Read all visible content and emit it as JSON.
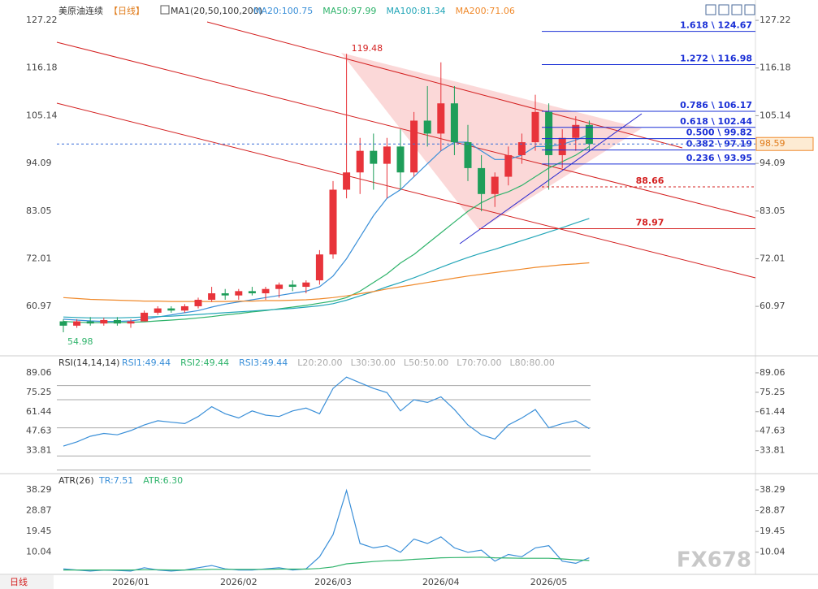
{
  "bottom_tab": "日线",
  "watermark": "FX678",
  "chart_data": [
    {
      "type": "candlestick",
      "title": "美原油连续",
      "subtitle": "【日线】",
      "indicator": "MA1(20,50,100,200)",
      "categories": [
        null,
        null,
        null,
        null,
        null,
        "2026/01",
        null,
        null,
        null,
        null,
        null,
        null,
        null,
        "2026/02",
        null,
        null,
        null,
        null,
        null,
        null,
        "2026/03",
        null,
        null,
        null,
        null,
        null,
        null,
        null,
        "2026/04",
        null,
        null,
        null,
        null,
        null,
        null,
        null,
        "2026/05",
        null,
        null,
        null
      ],
      "open": [
        57.5,
        56.5,
        57.5,
        57,
        57.8,
        57,
        57.5,
        59.5,
        60.5,
        60,
        61,
        62.5,
        64,
        63.5,
        64.5,
        64,
        65,
        66,
        65.5,
        67,
        73,
        88,
        92,
        97,
        94,
        98,
        92,
        104,
        101,
        108,
        99,
        93,
        87,
        91,
        96,
        99,
        106,
        96,
        100,
        103
      ],
      "high": [
        58,
        58,
        58.5,
        58.3,
        58.5,
        58,
        60,
        61,
        61,
        61.5,
        63,
        65.5,
        65,
        65,
        65.5,
        65.5,
        66.5,
        67,
        67,
        74,
        90,
        119.48,
        100,
        101,
        100,
        102,
        106,
        112,
        117.5,
        112,
        103,
        96,
        92,
        98,
        101,
        110,
        108,
        102,
        105,
        104
      ],
      "low": [
        54.98,
        56,
        56.5,
        56.5,
        56.5,
        56,
        57.5,
        59,
        59.5,
        59.5,
        60.5,
        62,
        62.5,
        62.5,
        63.5,
        62.5,
        63,
        64.5,
        64,
        66,
        72,
        86,
        87,
        88,
        86,
        88,
        91,
        98,
        97,
        96,
        90,
        83,
        84,
        89,
        94,
        97,
        88,
        93,
        97,
        97
      ],
      "close": [
        56.5,
        57.5,
        57,
        57.8,
        57,
        57.5,
        59.5,
        60.5,
        60,
        61,
        62.5,
        64,
        63.5,
        64.5,
        64,
        65,
        66,
        65.5,
        66.5,
        73,
        88,
        92,
        97,
        94,
        98,
        92,
        104,
        101,
        108,
        99,
        93,
        87,
        91,
        96,
        99,
        106,
        96,
        100,
        103,
        98.59
      ],
      "up_color": "#e8343b",
      "down_color": "#1f9e5a",
      "series": [
        {
          "name": "MA20:100.75",
          "color": "#3a8fd8",
          "values": [
            58,
            57.8,
            57.6,
            57.5,
            57.5,
            57.6,
            58,
            58.5,
            59,
            59.5,
            60,
            60.8,
            61.5,
            62,
            62.5,
            63,
            63.5,
            64,
            64.5,
            65.5,
            68,
            72,
            77,
            82,
            86,
            88,
            91,
            94,
            97,
            99,
            99,
            97,
            95,
            95,
            96,
            98,
            98,
            98.5,
            99.5,
            100.75
          ]
        },
        {
          "name": "MA50:97.99",
          "color": "#2fb36b",
          "values": [
            57.5,
            57.3,
            57.2,
            57.2,
            57.2,
            57.3,
            57.4,
            57.6,
            57.8,
            58,
            58.3,
            58.6,
            59,
            59.3,
            59.7,
            60,
            60.4,
            60.8,
            61.2,
            61.7,
            62.2,
            63,
            64.5,
            66.5,
            68.5,
            71,
            73,
            75.5,
            78,
            80.5,
            83,
            85,
            86.5,
            87.5,
            89,
            91,
            93,
            94.5,
            96,
            97.99
          ]
        },
        {
          "name": "MA100:81.34",
          "color": "#23a6b8",
          "values": [
            58.5,
            58.4,
            58.3,
            58.3,
            58.3,
            58.4,
            58.5,
            58.6,
            58.7,
            58.9,
            59.1,
            59.3,
            59.5,
            59.7,
            59.9,
            60.1,
            60.3,
            60.5,
            60.8,
            61.1,
            61.6,
            62.4,
            63.4,
            64.4,
            65.5,
            66.5,
            67.6,
            68.8,
            70,
            71.2,
            72.3,
            73.3,
            74.2,
            75.2,
            76.2,
            77.2,
            78.2,
            79.2,
            80.3,
            81.34
          ]
        },
        {
          "name": "MA200:71.06",
          "color": "#f08a2c",
          "values": [
            63,
            62.8,
            62.6,
            62.5,
            62.4,
            62.3,
            62.2,
            62.2,
            62.1,
            62.1,
            62.1,
            62.1,
            62.1,
            62.2,
            62.2,
            62.3,
            62.3,
            62.4,
            62.5,
            62.7,
            63,
            63.4,
            63.9,
            64.4,
            65,
            65.5,
            66,
            66.5,
            67,
            67.5,
            68,
            68.4,
            68.8,
            69.2,
            69.6,
            70,
            70.3,
            70.6,
            70.8,
            71.06
          ]
        }
      ],
      "high_annotation": 119.48,
      "low_annotation": 54.98,
      "last_price": 98.59,
      "levels": [
        {
          "value": 124.67,
          "label": "1.618 \\ 124.67",
          "color": "#1a2fd6"
        },
        {
          "value": 116.98,
          "label": "1.272 \\ 116.98",
          "color": "#1a2fd6"
        },
        {
          "value": 106.17,
          "label": "0.786 \\ 106.17",
          "color": "#1a2fd6"
        },
        {
          "value": 102.44,
          "label": "0.618 \\ 102.44",
          "color": "#1a2fd6"
        },
        {
          "value": 99.82,
          "label": "0.500 \\ 99.82",
          "color": "#1a2fd6"
        },
        {
          "value": 97.19,
          "label": "0.382 \\ 97.19",
          "color": "#1a2fd6"
        },
        {
          "value": 93.95,
          "label": "0.236 \\ 93.95",
          "color": "#1a2fd6"
        },
        {
          "value": 88.66,
          "label": "88.66",
          "color": "#d42020"
        },
        {
          "value": 78.97,
          "label": "78.97",
          "color": "#d42020"
        }
      ],
      "ylim": [
        49.7,
        131
      ],
      "yticks": [
        127.22,
        116.18,
        105.14,
        94.09,
        83.05,
        72.01,
        60.97
      ]
    },
    {
      "type": "line",
      "title": "RSI(14,14,14)",
      "series": [
        {
          "name": "RSI1:49.44",
          "color": "#3a8fd8",
          "values": [
            37,
            40,
            44,
            46,
            45,
            48,
            52,
            55,
            54,
            53,
            58,
            65,
            60,
            57,
            62,
            59,
            58,
            62,
            64,
            60,
            78,
            86,
            82,
            78,
            75,
            62,
            70,
            68,
            72,
            63,
            52,
            45,
            42,
            52,
            57,
            63,
            50,
            53,
            55,
            49.44
          ]
        }
      ],
      "other_legend": [
        {
          "label": "RSI2:49.44",
          "color": "#2fb36b"
        },
        {
          "label": "RSI3:49.44",
          "color": "#3a8fd8"
        }
      ],
      "levels": [
        {
          "value": 20,
          "label": "L20:20.00"
        },
        {
          "value": 30,
          "label": "L30:30.00"
        },
        {
          "value": 50,
          "label": "L50:50.00"
        },
        {
          "value": 70,
          "label": "L70:70.00"
        },
        {
          "value": 80,
          "label": "L80:80.00"
        }
      ],
      "ylim": [
        18,
        100
      ],
      "yticks": [
        89.06,
        75.25,
        61.44,
        47.63,
        33.81
      ]
    },
    {
      "type": "line",
      "title": "ATR(26)",
      "series": [
        {
          "name": "TR:7.51",
          "color": "#3a8fd8",
          "values": [
            2.5,
            2,
            1.5,
            2,
            1.8,
            1.5,
            3,
            2,
            1.5,
            2,
            3,
            4,
            2.5,
            2,
            2,
            2.5,
            3,
            2,
            2.5,
            8,
            18,
            38,
            14,
            12,
            13,
            10,
            16,
            14,
            17,
            12,
            10,
            11,
            6,
            9,
            8,
            12,
            13,
            6,
            5,
            7.51
          ]
        },
        {
          "name": "ATR:6.30",
          "color": "#2fb36b",
          "values": [
            2,
            2,
            2,
            2,
            2,
            2,
            2.1,
            2.1,
            2,
            2,
            2.1,
            2.3,
            2.3,
            2.3,
            2.3,
            2.3,
            2.4,
            2.4,
            2.4,
            2.7,
            3.4,
            4.8,
            5.3,
            5.8,
            6.2,
            6.4,
            6.8,
            7.1,
            7.5,
            7.6,
            7.7,
            7.8,
            7.5,
            7.4,
            7.3,
            7.3,
            7.3,
            7,
            6.6,
            6.3
          ]
        }
      ],
      "ylim": [
        0,
        44.9
      ],
      "yticks": [
        38.29,
        28.87,
        19.45,
        10.04
      ]
    }
  ]
}
